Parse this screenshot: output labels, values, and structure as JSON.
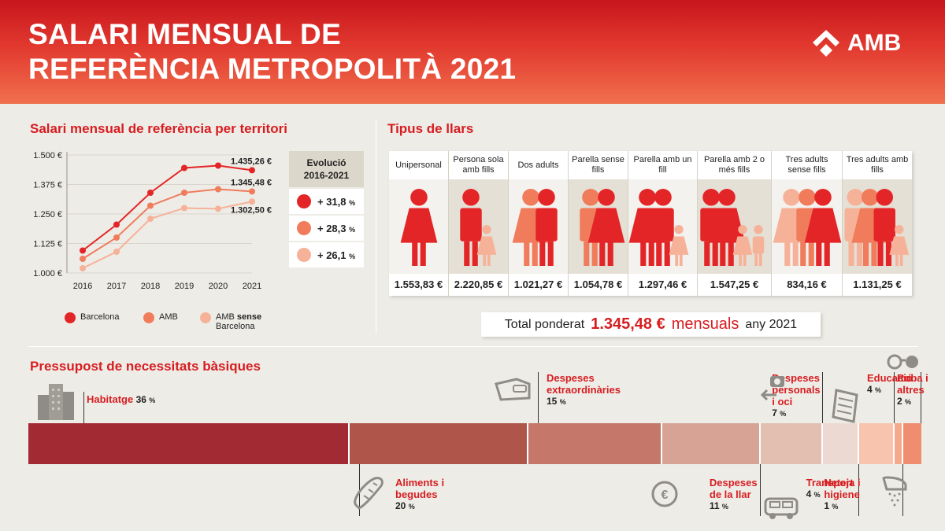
{
  "header": {
    "title_line1": "SALARI MENSUAL DE",
    "title_line2": "REFERÈNCIA METROPOLITÀ 2021",
    "logo": "AMB"
  },
  "territory": {
    "title": "Salari mensual de referència per territori",
    "evolution_title_line1": "Evolució",
    "evolution_title_line2": "2016-2021",
    "evolution": [
      {
        "value": "+ 31,8",
        "unit": "%",
        "color": "#e42527"
      },
      {
        "value": "+ 28,3",
        "unit": "%",
        "color": "#f07c5c"
      },
      {
        "value": "+ 26,1",
        "unit": "%",
        "color": "#f6b299"
      }
    ],
    "legend": [
      {
        "label": "Barcelona",
        "extra": "",
        "color": "#e42527"
      },
      {
        "label": "AMB",
        "extra": "",
        "color": "#f07c5c"
      },
      {
        "label": "AMB",
        "extra": "sense",
        "line2": "Barcelona",
        "color": "#f6b299"
      }
    ]
  },
  "chart_data": {
    "type": "line",
    "title": "Salari mensual de referència per territori",
    "x": [
      "2016",
      "2017",
      "2018",
      "2019",
      "2020",
      "2021"
    ],
    "y_ticks": [
      "1.000 €",
      "1.125 €",
      "1.250 €",
      "1.375 €",
      "1.500 €"
    ],
    "ylim": [
      1000,
      1500
    ],
    "grid": true,
    "legend_position": "bottom",
    "series": [
      {
        "name": "Barcelona",
        "color": "#e42527",
        "values": [
          1095,
          1205,
          1340,
          1445,
          1455,
          1435.26
        ],
        "end_label": "1.435,26 €"
      },
      {
        "name": "AMB",
        "color": "#f07c5c",
        "values": [
          1060,
          1150,
          1285,
          1340,
          1355,
          1345.48
        ],
        "end_label": "1.345,48 €"
      },
      {
        "name": "AMB sense Barcelona",
        "color": "#f6b299",
        "values": [
          1020,
          1090,
          1230,
          1275,
          1272,
          1302.5
        ],
        "end_label": "1.302,50 €"
      }
    ]
  },
  "households": {
    "title": "Tipus de llars",
    "items": [
      {
        "label": "Unipersonal",
        "value": "1.553,83 €",
        "adults": 1,
        "children": 0
      },
      {
        "label": "Persona sola amb fills",
        "value": "2.220,85 €",
        "adults": 1,
        "children": 1
      },
      {
        "label": "Dos adults",
        "value": "1.021,27 €",
        "adults": 2,
        "children": 0
      },
      {
        "label": "Parella sense fills",
        "value": "1.054,78 €",
        "adults": 2,
        "children": 0
      },
      {
        "label": "Parella amb un fill",
        "value": "1.297,46 €",
        "adults": 2,
        "children": 1
      },
      {
        "label": "Parella amb 2 o més fills",
        "value": "1.547,25 €",
        "adults": 2,
        "children": 2
      },
      {
        "label": "Tres adults sense fills",
        "value": "834,16 €",
        "adults": 3,
        "children": 0
      },
      {
        "label": "Tres adults amb fills",
        "value": "1.131,25 €",
        "adults": 3,
        "children": 1
      }
    ],
    "total_prefix": "Total ponderat",
    "total_value": "1.345,48 €",
    "total_unit": "mensuals",
    "total_suffix": "any 2021"
  },
  "budget": {
    "title": "Pressupost de necessitats bàsiques",
    "segments": [
      {
        "label": "Habitatge",
        "pct": 36,
        "color": "#a22a32",
        "icon": "buildings-icon"
      },
      {
        "label": "Aliments i begudes",
        "pct": 20,
        "color": "#b0554a",
        "icon": "bread-icon"
      },
      {
        "label": "Despeses extraordinàries",
        "pct": 15,
        "color": "#c5776a",
        "icon": "wallet-icon"
      },
      {
        "label": "Despeses de la llar",
        "pct": 11,
        "color": "#d7a395",
        "icon": "euro-icon"
      },
      {
        "label": "Despeses personals i oci",
        "pct": 7,
        "color": "#e3bfb2",
        "icon": "camera-icon"
      },
      {
        "label": "Transport",
        "pct": 4,
        "color": "#ecdad2",
        "icon": "car-icon"
      },
      {
        "label": "Educació",
        "pct": 4,
        "color": "#f9c4ae",
        "icon": "notebook-icon"
      },
      {
        "label": "Neteja i higiene",
        "pct": 1,
        "color": "#f6a88d",
        "icon": "shower-icon"
      },
      {
        "label": "Roba i altres",
        "pct": 2,
        "color": "#f08d6e",
        "icon": "glasses-icon"
      }
    ],
    "pct_unit": "%"
  }
}
